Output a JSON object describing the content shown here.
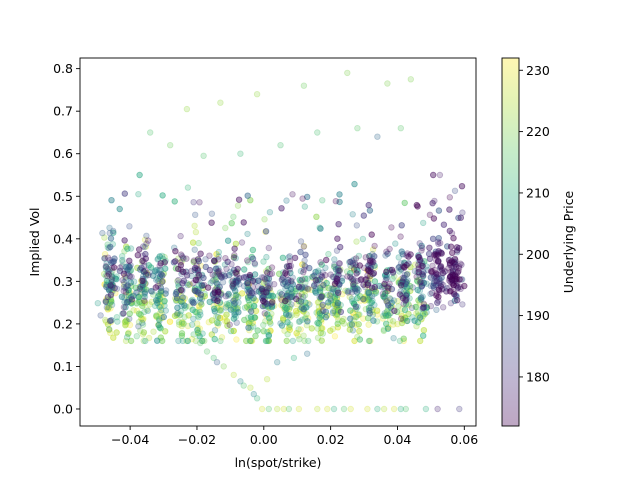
{
  "chart_data": {
    "type": "scatter",
    "title": "",
    "xlabel": "ln(spot/strike)",
    "ylabel": "Implied Vol",
    "xlim": [
      -0.055,
      0.0635
    ],
    "ylim": [
      -0.04,
      0.825
    ],
    "xticks": [
      -0.04,
      -0.02,
      0.0,
      0.02,
      0.04,
      0.06
    ],
    "xtick_labels": [
      "−0.04",
      "−0.02",
      "0.00",
      "0.02",
      "0.04",
      "0.06"
    ],
    "yticks": [
      0.0,
      0.1,
      0.2,
      0.3,
      0.4,
      0.5,
      0.6,
      0.7,
      0.8
    ],
    "ytick_labels": [
      "0.0",
      "0.1",
      "0.2",
      "0.3",
      "0.4",
      "0.5",
      "0.6",
      "0.7",
      "0.8"
    ],
    "marker_alpha": 0.25,
    "colorbar": {
      "label": "Underlying Price",
      "colormap": "viridis",
      "range": [
        172,
        232
      ],
      "ticks": [
        180,
        190,
        200,
        210,
        220,
        230
      ],
      "tick_labels": [
        "180",
        "190",
        "200",
        "210",
        "220",
        "230"
      ]
    },
    "price_bands": [
      {
        "price": 175,
        "iv_center": 0.305,
        "iv_spread": 0.035
      },
      {
        "price": 188,
        "iv_center": 0.29,
        "iv_spread": 0.04
      },
      {
        "price": 200,
        "iv_center": 0.27,
        "iv_spread": 0.045
      },
      {
        "price": 210,
        "iv_center": 0.255,
        "iv_spread": 0.05
      },
      {
        "price": 220,
        "iv_center": 0.235,
        "iv_spread": 0.05
      },
      {
        "price": 228,
        "iv_center": 0.22,
        "iv_spread": 0.04
      }
    ],
    "x_clusters": [
      -0.046,
      -0.041,
      -0.036,
      -0.031,
      -0.025,
      -0.02,
      -0.014,
      -0.009,
      -0.004,
      0.001,
      0.007,
      0.012,
      0.017,
      0.022,
      0.027,
      0.032,
      0.037,
      0.042,
      0.047,
      0.052,
      0.057
    ],
    "outliers": [
      {
        "x": -0.034,
        "y": 0.65,
        "price": 215
      },
      {
        "x": -0.023,
        "y": 0.705,
        "price": 222
      },
      {
        "x": -0.013,
        "y": 0.72,
        "price": 222
      },
      {
        "x": -0.002,
        "y": 0.74,
        "price": 222
      },
      {
        "x": 0.012,
        "y": 0.76,
        "price": 218
      },
      {
        "x": 0.025,
        "y": 0.79,
        "price": 220
      },
      {
        "x": 0.037,
        "y": 0.765,
        "price": 220
      },
      {
        "x": 0.044,
        "y": 0.775,
        "price": 220
      },
      {
        "x": -0.028,
        "y": 0.62,
        "price": 218
      },
      {
        "x": -0.018,
        "y": 0.595,
        "price": 215
      },
      {
        "x": -0.007,
        "y": 0.6,
        "price": 212
      },
      {
        "x": 0.005,
        "y": 0.62,
        "price": 214
      },
      {
        "x": 0.016,
        "y": 0.65,
        "price": 214
      },
      {
        "x": 0.028,
        "y": 0.66,
        "price": 216
      },
      {
        "x": 0.041,
        "y": 0.66,
        "price": 216
      },
      {
        "x": 0.034,
        "y": 0.64,
        "price": 192
      },
      {
        "x": 0.052,
        "y": 0.0,
        "price": 178
      }
    ],
    "low_vol_tail": [
      {
        "x": -0.024,
        "y": 0.2,
        "price": 212
      },
      {
        "x": -0.021,
        "y": 0.175,
        "price": 214
      },
      {
        "x": -0.019,
        "y": 0.155,
        "price": 216
      },
      {
        "x": -0.017,
        "y": 0.135,
        "price": 216
      },
      {
        "x": -0.015,
        "y": 0.12,
        "price": 214
      },
      {
        "x": -0.014,
        "y": 0.11,
        "price": 190
      },
      {
        "x": -0.012,
        "y": 0.1,
        "price": 220
      },
      {
        "x": -0.009,
        "y": 0.08,
        "price": 225
      },
      {
        "x": -0.007,
        "y": 0.065,
        "price": 200
      },
      {
        "x": -0.006,
        "y": 0.055,
        "price": 215
      },
      {
        "x": -0.004,
        "y": 0.05,
        "price": 225
      },
      {
        "x": -0.003,
        "y": 0.035,
        "price": 200
      },
      {
        "x": -0.002,
        "y": 0.025,
        "price": 212
      },
      {
        "x": 0.001,
        "y": 0.07,
        "price": 225
      },
      {
        "x": 0.004,
        "y": 0.11,
        "price": 198
      },
      {
        "x": 0.009,
        "y": 0.12,
        "price": 210
      },
      {
        "x": 0.013,
        "y": 0.13,
        "price": 195
      }
    ],
    "zero_vol_points": [
      {
        "x": -0.0005,
        "price": 228
      },
      {
        "x": 0.0015,
        "price": 215
      },
      {
        "x": 0.004,
        "price": 225
      },
      {
        "x": 0.006,
        "price": 228
      },
      {
        "x": 0.0075,
        "price": 215
      },
      {
        "x": 0.0105,
        "price": 228
      },
      {
        "x": 0.016,
        "price": 226
      },
      {
        "x": 0.019,
        "price": 228
      },
      {
        "x": 0.021,
        "price": 210
      },
      {
        "x": 0.024,
        "price": 215
      },
      {
        "x": 0.026,
        "price": 228
      },
      {
        "x": 0.031,
        "price": 228
      },
      {
        "x": 0.034,
        "price": 210
      },
      {
        "x": 0.036,
        "price": 225
      },
      {
        "x": 0.039,
        "price": 228
      },
      {
        "x": 0.041,
        "price": 210
      },
      {
        "x": 0.0425,
        "price": 215
      },
      {
        "x": 0.0485,
        "price": 210
      },
      {
        "x": 0.0585,
        "price": 182
      }
    ],
    "n_points": 2600
  }
}
